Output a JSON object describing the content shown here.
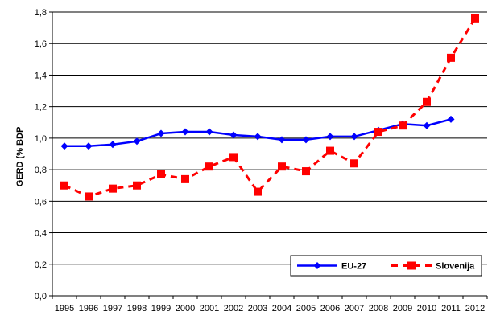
{
  "chart_data": {
    "type": "line",
    "title": "",
    "xlabel": "",
    "ylabel": "GERD (% BDP",
    "categories": [
      "1995",
      "1996",
      "1997",
      "1998",
      "1999",
      "2000",
      "2001",
      "2002",
      "2003",
      "2004",
      "2005",
      "2006",
      "2007",
      "2008",
      "2009",
      "2010",
      "2011",
      "2012"
    ],
    "ylim": [
      0,
      1.8
    ],
    "yticks": [
      "0,0",
      "0,2",
      "0,4",
      "0,6",
      "0,8",
      "1,0",
      "1,2",
      "1,4",
      "1,6",
      "1,8"
    ],
    "grid": "horizontal",
    "legend_position": "bottom-right",
    "series": [
      {
        "name": "EU-27",
        "color": "#0000FF",
        "line_style": "solid",
        "marker": "diamond",
        "values": [
          0.95,
          0.95,
          0.96,
          0.98,
          1.03,
          1.04,
          1.04,
          1.02,
          1.01,
          0.99,
          0.99,
          1.01,
          1.01,
          1.05,
          1.09,
          1.08,
          1.12,
          null
        ]
      },
      {
        "name": "Slovenija",
        "color": "#FF0000",
        "line_style": "dashed",
        "marker": "square",
        "values": [
          0.7,
          0.63,
          0.68,
          0.7,
          0.77,
          0.74,
          0.82,
          0.88,
          0.66,
          0.82,
          0.79,
          0.92,
          0.84,
          1.04,
          1.08,
          1.23,
          1.51,
          1.76
        ]
      }
    ]
  }
}
